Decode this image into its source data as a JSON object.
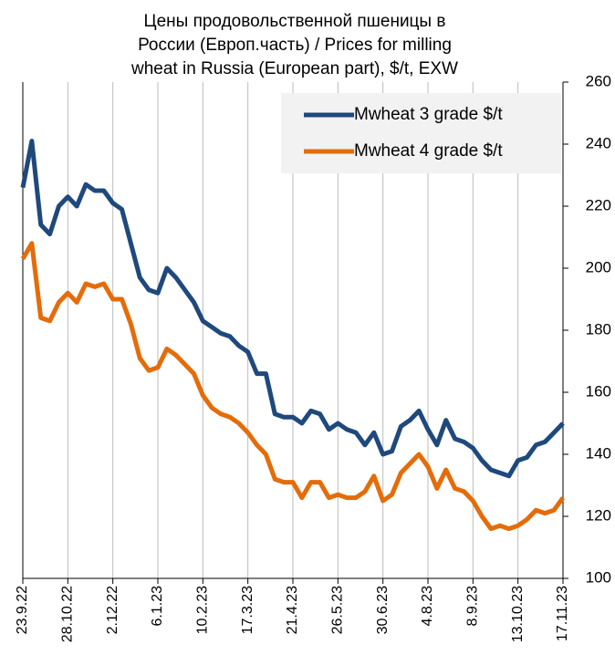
{
  "chart_data": {
    "type": "line",
    "title": [
      "Цены продовольственной пшеницы в",
      "России (Европ.часть) / Prices for milling",
      "wheat in Russia (European part), $/t, EXW"
    ],
    "categories": [
      "23.9.22",
      null,
      null,
      null,
      null,
      "28.10.22",
      null,
      null,
      null,
      null,
      "2.12.22",
      null,
      null,
      null,
      null,
      "6.1.23",
      null,
      null,
      null,
      null,
      "10.2.23",
      null,
      null,
      null,
      null,
      "17.3.23",
      null,
      null,
      null,
      null,
      "21.4.23",
      null,
      null,
      null,
      null,
      "26.5.23",
      null,
      null,
      null,
      null,
      "30.6.23",
      null,
      null,
      null,
      null,
      "4.8.23",
      null,
      null,
      null,
      null,
      "8.9.23",
      null,
      null,
      null,
      null,
      "13.10.23",
      null,
      null,
      null,
      null,
      "17.11.23"
    ],
    "series": [
      {
        "name": "Mwheat 3 grade $/t",
        "color": "#1f497d",
        "values": [
          226,
          241,
          214,
          211,
          220,
          223,
          220,
          227,
          225,
          225,
          221,
          219,
          208,
          197,
          193,
          192,
          200,
          197,
          193,
          189,
          183,
          181,
          179,
          178,
          175,
          173,
          166,
          166,
          153,
          152,
          152,
          150,
          154,
          153,
          148,
          150,
          148,
          147,
          143,
          147,
          140,
          141,
          149,
          151,
          154,
          148,
          143,
          151,
          145,
          144,
          142,
          138,
          135,
          134,
          133,
          138,
          139,
          143,
          144,
          147,
          150
        ]
      },
      {
        "name": "Mwheat 4 grade $/t",
        "color": "#e46c0a",
        "values": [
          203,
          208,
          184,
          183,
          189,
          192,
          189,
          195,
          194,
          195,
          190,
          190,
          182,
          171,
          167,
          168,
          174,
          172,
          169,
          166,
          159,
          155,
          153,
          152,
          150,
          147,
          143,
          140,
          132,
          131,
          131,
          126,
          131,
          131,
          126,
          127,
          126,
          126,
          128,
          133,
          125,
          127,
          134,
          137,
          140,
          136,
          129,
          135,
          129,
          128,
          125,
          120,
          116,
          117,
          116,
          117,
          119,
          122,
          121,
          122,
          126
        ]
      }
    ],
    "ylim": [
      100,
      260
    ],
    "yticks": [
      100,
      120,
      140,
      160,
      180,
      200,
      220,
      240,
      260
    ],
    "grid": true,
    "legend": "upper right"
  }
}
